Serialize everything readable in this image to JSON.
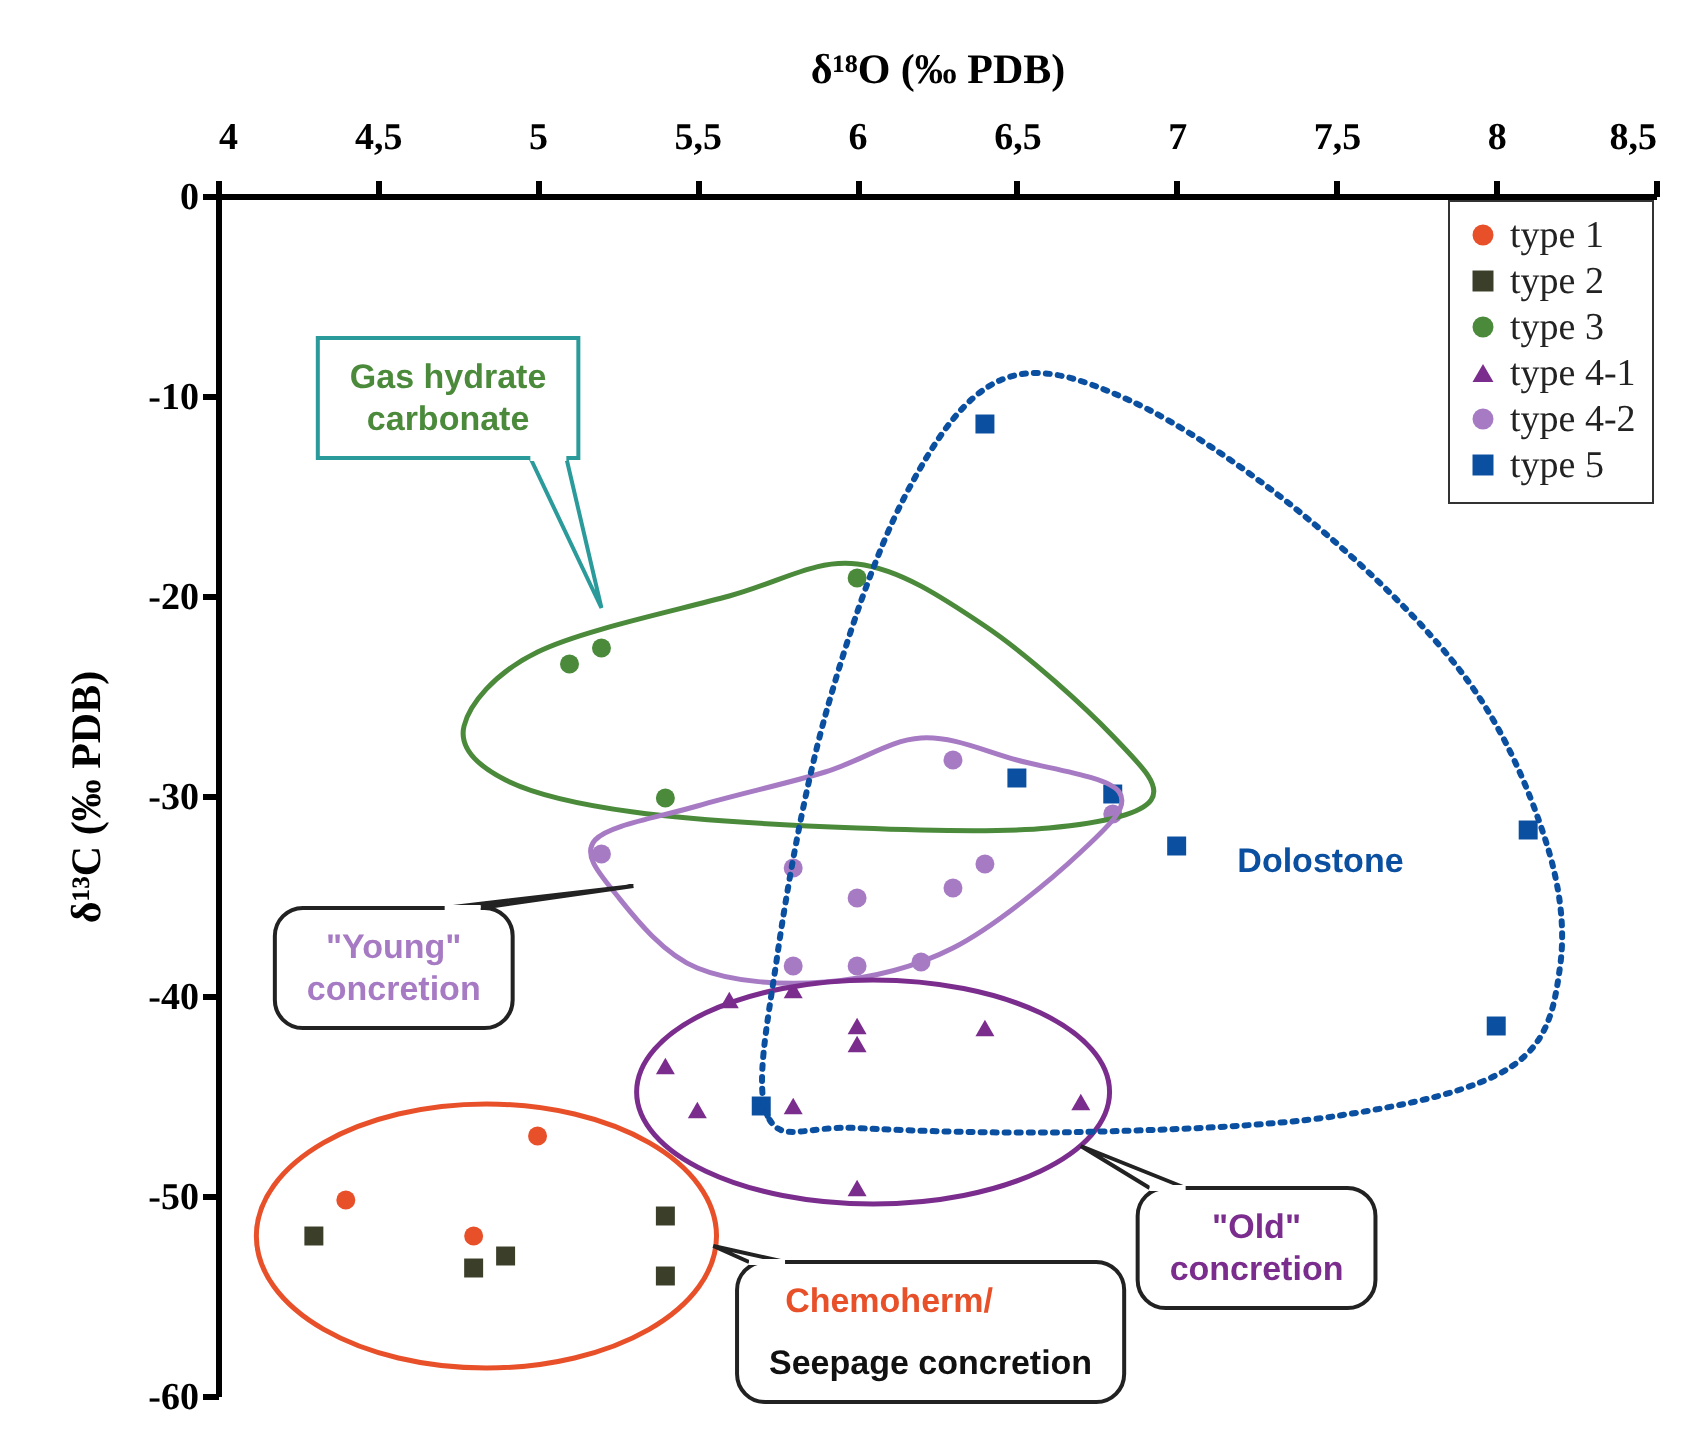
{
  "chart_data": {
    "type": "scatter",
    "xlabel": "δ¹⁸O (‰ PDB)",
    "ylabel": "δ¹³C (‰ PDB)",
    "xlim": [
      4,
      8.5
    ],
    "xticks": [
      4,
      {
        "value": 4.5,
        "label": "4,5"
      },
      5,
      {
        "value": 5.5,
        "label": "5,5"
      },
      6,
      {
        "value": 6.5,
        "label": "6,5"
      },
      7,
      {
        "value": 7.5,
        "label": "7,5"
      },
      8,
      {
        "value": 8.5,
        "label": "8,5"
      }
    ],
    "ylim": [
      -60,
      0
    ],
    "yticks": [
      -60,
      -50,
      -40,
      -30,
      -20,
      -10,
      0
    ],
    "grid": false,
    "legend": "top right",
    "series": [
      {
        "name": "type 1",
        "color": "#e8502a",
        "marker": "circle",
        "x": [
          4.4,
          4.8,
          5.0
        ],
        "values": [
          -50.2,
          -52,
          -47
        ]
      },
      {
        "name": "type 2",
        "color": "#3b3f2a",
        "marker": "square",
        "x": [
          4.3,
          4.8,
          4.9,
          5.4,
          5.4
        ],
        "values": [
          -52,
          -53.6,
          -53,
          -51,
          -54
        ]
      },
      {
        "name": "type 3",
        "color": "#4a8a3a",
        "marker": "circle",
        "x": [
          5.1,
          5.2,
          6.0,
          5.4
        ],
        "values": [
          -23.4,
          -22.6,
          -19.1,
          -30.1
        ]
      },
      {
        "name": "type 4-1",
        "color": "#7b2d8e",
        "marker": "triangle",
        "x": [
          5.4,
          5.5,
          5.6,
          5.8,
          5.8,
          6.0,
          6.0,
          6.0,
          6.4,
          6.7
        ],
        "values": [
          -43.5,
          -45.7,
          -40.2,
          -39.7,
          -45.5,
          -41.5,
          -42.4,
          -49.6,
          -41.6,
          -45.3
        ]
      },
      {
        "name": "type 4-2",
        "color": "#a77bc4",
        "marker": "circle",
        "x": [
          6.3,
          6.8,
          5.2,
          5.8,
          6.0,
          6.3,
          6.4,
          5.8,
          6.0,
          6.2
        ],
        "values": [
          -28.2,
          -30.9,
          -32.9,
          -33.6,
          -35.1,
          -34.6,
          -33.4,
          -38.5,
          -38.5,
          -38.3
        ]
      },
      {
        "name": "type 5",
        "color": "#0a4fa0",
        "marker": "square",
        "x": [
          6.4,
          6.5,
          6.8,
          7.0,
          8.1,
          8.0,
          5.7
        ],
        "values": [
          -11.4,
          -29.1,
          -29.9,
          -32.5,
          -31.7,
          -41.5,
          -45.5
        ]
      }
    ],
    "annotations": [
      "Gas hydrate carbonate",
      "\"Young\" concretion",
      "\"Old\" concretion",
      "Chemoherm/",
      "Seepage concretion",
      "Dolostone"
    ]
  }
}
